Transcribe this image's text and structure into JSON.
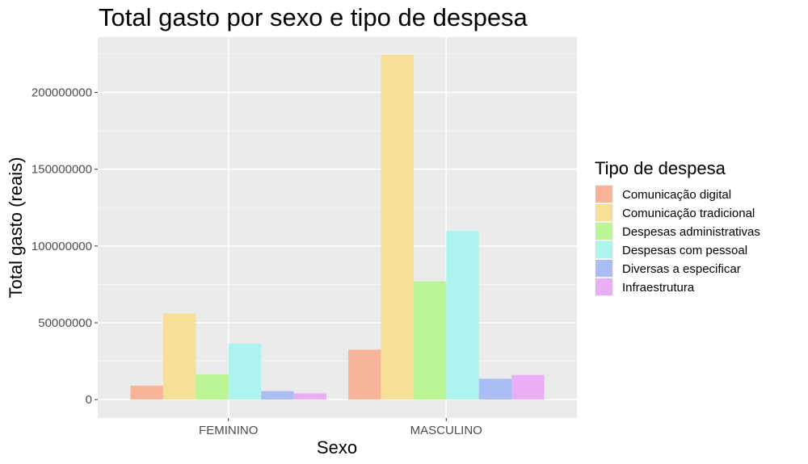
{
  "chart_data": {
    "type": "bar",
    "title": "Total gasto por sexo e tipo de despesa",
    "xlabel": "Sexo",
    "ylabel": "Total gasto (reais)",
    "categories": [
      "FEMININO",
      "MASCULINO"
    ],
    "ylim": [
      -12000000,
      236000000
    ],
    "yticks": [
      0,
      50000000,
      100000000,
      150000000,
      200000000
    ],
    "ytick_labels": [
      "0",
      "50000000",
      "100000000",
      "150000000",
      "200000000"
    ],
    "grid": true,
    "legend_position": "right",
    "legend_title": "Tipo de despesa",
    "series": [
      {
        "name": "Comunicação digital",
        "color": "#F8B499",
        "values": [
          9000000,
          32500000
        ]
      },
      {
        "name": "Comunicação tradicional",
        "color": "#F6DF96",
        "values": [
          56000000,
          224500000
        ]
      },
      {
        "name": "Despesas administrativas",
        "color": "#BAF695",
        "values": [
          16500000,
          77000000
        ]
      },
      {
        "name": "Despesas com pessoal",
        "color": "#AEF4EE",
        "values": [
          36500000,
          110000000
        ]
      },
      {
        "name": "Diversas a especificar",
        "color": "#AABDF4",
        "values": [
          5500000,
          13500000
        ]
      },
      {
        "name": "Infraestrutura",
        "color": "#E9AEF6",
        "values": [
          4000000,
          16000000
        ]
      }
    ]
  }
}
